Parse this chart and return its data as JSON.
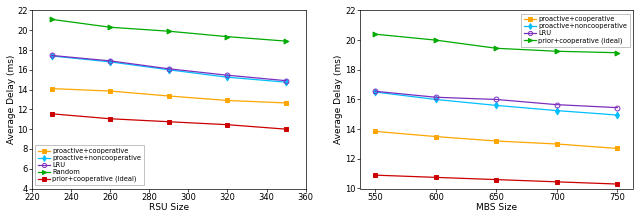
{
  "left": {
    "xlabel": "RSU Size",
    "ylabel": "Average Delay (ms)",
    "xlim": [
      220,
      360
    ],
    "ylim": [
      4,
      22
    ],
    "xticks": [
      220,
      240,
      260,
      280,
      300,
      320,
      340,
      360
    ],
    "yticks": [
      4,
      6,
      8,
      10,
      12,
      14,
      16,
      18,
      20,
      22
    ],
    "x": [
      230,
      260,
      290,
      320,
      350
    ],
    "series": [
      {
        "name": "proactive+cooperative",
        "y": [
          14.1,
          13.85,
          13.35,
          12.9,
          12.65
        ],
        "color": "#FFA500",
        "marker": "s"
      },
      {
        "name": "proactive+noncooperative",
        "y": [
          17.4,
          16.8,
          16.0,
          15.25,
          14.75
        ],
        "color": "#00BFFF",
        "marker": "d"
      },
      {
        "name": "LRU",
        "y": [
          17.45,
          16.9,
          16.1,
          15.45,
          14.9
        ],
        "color": "#7B2FBE",
        "marker": "o"
      },
      {
        "name": "Random",
        "y": [
          21.1,
          20.3,
          19.9,
          19.35,
          18.9
        ],
        "color": "#00AA00",
        "marker": ">"
      },
      {
        "name": "prior+cooperative (ideal)",
        "y": [
          11.55,
          11.05,
          10.75,
          10.45,
          10.0
        ],
        "color": "#CC0000",
        "marker": "s"
      }
    ],
    "legend_loc": "lower left"
  },
  "right": {
    "xlabel": "MBS Size",
    "ylabel": "Average Delay (ms)",
    "xlim": [
      537,
      763
    ],
    "ylim": [
      10,
      22
    ],
    "xticks": [
      550,
      600,
      650,
      700,
      750
    ],
    "yticks": [
      10,
      12,
      14,
      16,
      18,
      20,
      22
    ],
    "x": [
      550,
      600,
      650,
      700,
      750
    ],
    "series": [
      {
        "name": "proactive+cooperative",
        "y": [
          13.85,
          13.5,
          13.2,
          13.0,
          12.7
        ],
        "color": "#FFA500",
        "marker": "s"
      },
      {
        "name": "proactive+noncooperative",
        "y": [
          16.5,
          16.0,
          15.6,
          15.25,
          14.95
        ],
        "color": "#00BFFF",
        "marker": "d"
      },
      {
        "name": "LRU",
        "y": [
          16.55,
          16.15,
          16.0,
          15.65,
          15.45
        ],
        "color": "#7B2FBE",
        "marker": "o"
      },
      {
        "name": "prior+cooperative (ideal)",
        "y": [
          20.4,
          20.0,
          19.45,
          19.25,
          19.15
        ],
        "color": "#00AA00",
        "marker": ">"
      },
      {
        "name": "prior+cooperative (ideal)_red",
        "y": [
          10.9,
          10.75,
          10.6,
          10.45,
          10.3
        ],
        "color": "#CC0000",
        "marker": "s"
      }
    ],
    "legend_entries": [
      {
        "name": "proactive+cooperative",
        "color": "#FFA500",
        "marker": "s"
      },
      {
        "name": "proactive+noncooperative",
        "color": "#00BFFF",
        "marker": "d"
      },
      {
        "name": "LRU",
        "color": "#7B2FBE",
        "marker": "o"
      },
      {
        "name": "prior+cooperative (ideal)",
        "color": "#00AA00",
        "marker": ">"
      }
    ],
    "legend_loc": "upper right"
  },
  "fig_width": 6.4,
  "fig_height": 2.19,
  "dpi": 100,
  "fontsize": 6.5,
  "tick_fontsize": 6,
  "marker_size": 3.5,
  "linewidth": 0.9
}
